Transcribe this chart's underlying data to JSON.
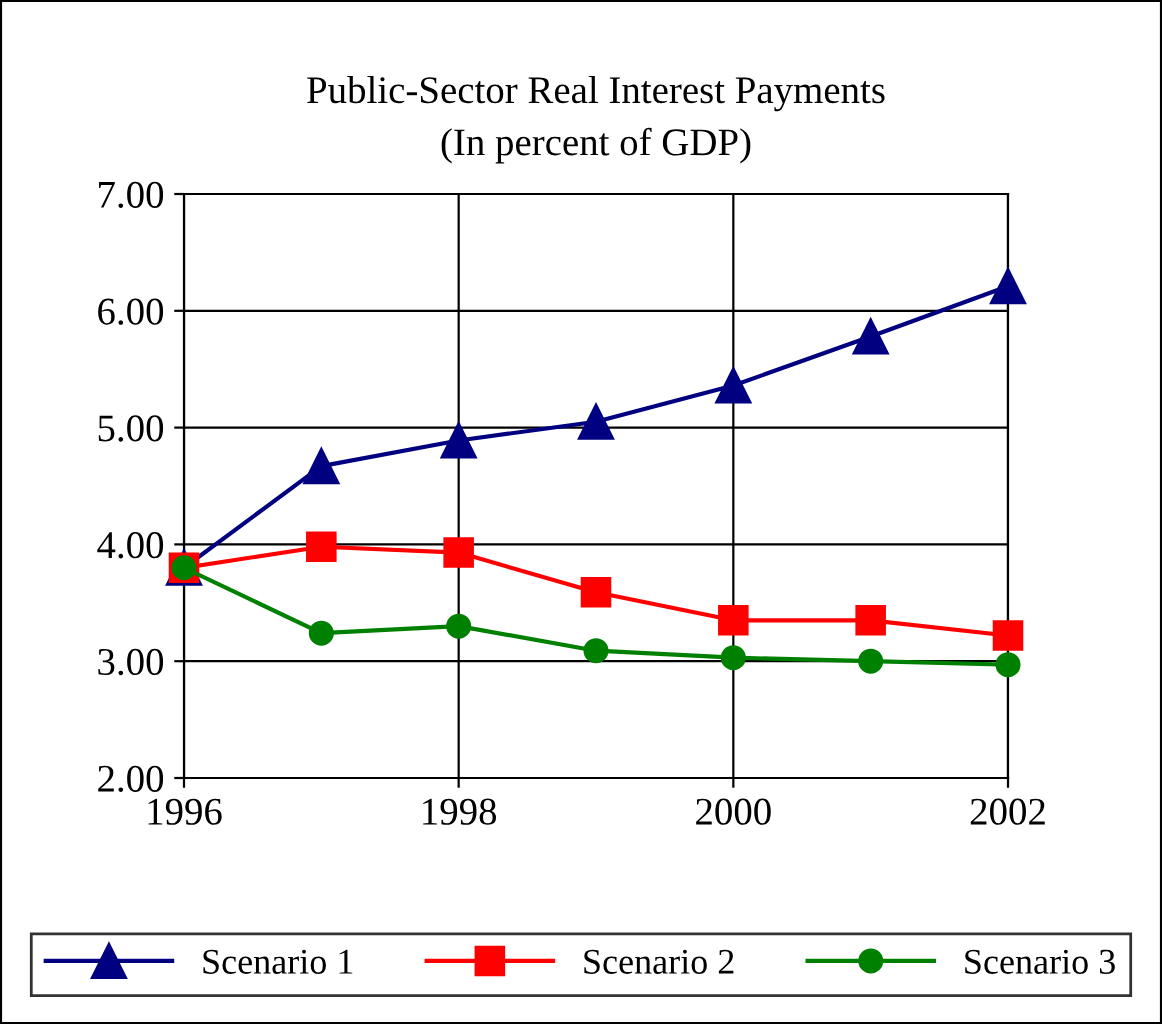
{
  "chart_data": {
    "type": "line",
    "title": "Public-Sector Real Interest Payments\n(In percent of GDP)",
    "x": [
      1996,
      1997,
      1998,
      1999,
      2000,
      2001,
      2002
    ],
    "series": [
      {
        "name": "Scenario 1",
        "color": "#000080",
        "marker": "triangle",
        "values": [
          3.8,
          4.67,
          4.89,
          5.05,
          5.36,
          5.78,
          6.21
        ]
      },
      {
        "name": "Scenario 2",
        "color": "#ff0000",
        "marker": "square",
        "values": [
          3.8,
          3.98,
          3.93,
          3.59,
          3.35,
          3.35,
          3.22
        ]
      },
      {
        "name": "Scenario 3",
        "color": "#008000",
        "marker": "circle",
        "values": [
          3.8,
          3.24,
          3.3,
          3.09,
          3.03,
          3.0,
          2.97
        ]
      }
    ],
    "xlim": [
      1996,
      2002
    ],
    "xticks": [
      1996,
      1998,
      2000,
      2002
    ],
    "ylim": [
      2,
      7
    ],
    "yticks": [
      {
        "value": 2,
        "label": "2.00"
      },
      {
        "value": 3,
        "label": "3.00"
      },
      {
        "value": 4,
        "label": "4.00"
      },
      {
        "value": 5,
        "label": "5.00"
      },
      {
        "value": 6,
        "label": "6.00"
      },
      {
        "value": 7,
        "label": "7.00"
      }
    ],
    "grid": true,
    "legend": "bottom",
    "line_style": "solid"
  }
}
